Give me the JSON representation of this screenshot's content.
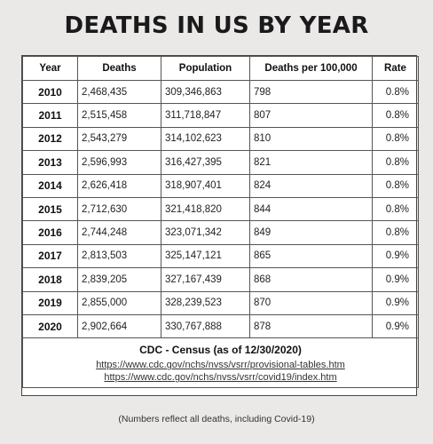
{
  "title": "DEATHS IN US BY YEAR",
  "headers": [
    "Year",
    "Deaths",
    "Population",
    "Deaths per 100,000",
    "Rate"
  ],
  "rows": [
    {
      "year": "2010",
      "deaths": "2,468,435",
      "population": "309,346,863",
      "per100k": "798",
      "rate": "0.8%"
    },
    {
      "year": "2011",
      "deaths": "2,515,458",
      "population": "311,718,847",
      "per100k": "807",
      "rate": "0.8%"
    },
    {
      "year": "2012",
      "deaths": "2,543,279",
      "population": "314,102,623",
      "per100k": "810",
      "rate": "0.8%"
    },
    {
      "year": "2013",
      "deaths": "2,596,993",
      "population": "316,427,395",
      "per100k": "821",
      "rate": "0.8%"
    },
    {
      "year": "2014",
      "deaths": "2,626,418",
      "population": "318,907,401",
      "per100k": "824",
      "rate": "0.8%"
    },
    {
      "year": "2015",
      "deaths": "2,712,630",
      "population": "321,418,820",
      "per100k": "844",
      "rate": "0.8%"
    },
    {
      "year": "2016",
      "deaths": "2,744,248",
      "population": "323,071,342",
      "per100k": "849",
      "rate": "0.8%"
    },
    {
      "year": "2017",
      "deaths": "2,813,503",
      "population": "325,147,121",
      "per100k": "865",
      "rate": "0.9%"
    },
    {
      "year": "2018",
      "deaths": "2,839,205",
      "population": "327,167,439",
      "per100k": "868",
      "rate": "0.9%"
    },
    {
      "year": "2019",
      "deaths": "2,855,000",
      "population": "328,239,523",
      "per100k": "870",
      "rate": "0.9%"
    },
    {
      "year": "2020",
      "deaths": "2,902,664",
      "population": "330,767,888",
      "per100k": "878",
      "rate": "0.9%"
    }
  ],
  "source": {
    "title": "CDC - Census (as of 12/30/2020)",
    "links": [
      "https://www.cdc.gov/nchs/nvss/vsrr/provisional-tables.htm",
      "https://www.cdc.gov/nchs/nvss/vsrr/covid19/index.htm"
    ]
  },
  "note": "(Numbers reflect all deaths, including Covid-19)"
}
